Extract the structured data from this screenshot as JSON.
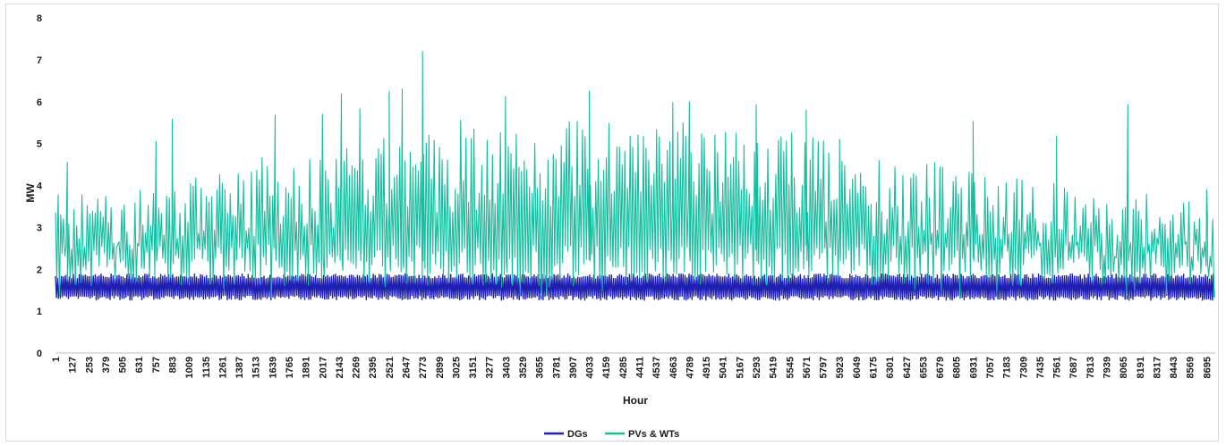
{
  "chart_data": {
    "type": "line",
    "title": "",
    "xlabel": "Hour",
    "ylabel": "MW",
    "ylim": [
      0,
      8
    ],
    "yticks": [
      0,
      1,
      2,
      3,
      4,
      5,
      6,
      7,
      8
    ],
    "xlim": [
      1,
      8760
    ],
    "xticks": [
      "1",
      "127",
      "253",
      "379",
      "505",
      "631",
      "757",
      "883",
      "1009",
      "1135",
      "1261",
      "1387",
      "1513",
      "1639",
      "1765",
      "1891",
      "2017",
      "2143",
      "2269",
      "2395",
      "2521",
      "2647",
      "2773",
      "2899",
      "3025",
      "3151",
      "3277",
      "3403",
      "3529",
      "3655",
      "3781",
      "3907",
      "4033",
      "4159",
      "4285",
      "4411",
      "4537",
      "4663",
      "4789",
      "4915",
      "5041",
      "5167",
      "5293",
      "5419",
      "5545",
      "5671",
      "5797",
      "5923",
      "6049",
      "6175",
      "6301",
      "6427",
      "6553",
      "6679",
      "6805",
      "6931",
      "7057",
      "7183",
      "7309",
      "7435",
      "7561",
      "7687",
      "7813",
      "7939",
      "8065",
      "8191",
      "8317",
      "8443",
      "8569",
      "8695"
    ],
    "grid": false,
    "legend_position": "bottom",
    "series": [
      {
        "name": "DGs",
        "color": "#1f1fb4",
        "min": 1.25,
        "max": 1.9
      },
      {
        "name": "PVs & WTs",
        "color": "#12bfa0",
        "typical_range": [
          1.5,
          6.0
        ],
        "peaks": [
          {
            "x": 90,
            "y": 4.55
          },
          {
            "x": 760,
            "y": 5.05
          },
          {
            "x": 883,
            "y": 5.58
          },
          {
            "x": 1660,
            "y": 5.68
          },
          {
            "x": 2017,
            "y": 5.7
          },
          {
            "x": 2160,
            "y": 6.18
          },
          {
            "x": 2300,
            "y": 5.83
          },
          {
            "x": 2521,
            "y": 6.25
          },
          {
            "x": 2620,
            "y": 6.3
          },
          {
            "x": 2773,
            "y": 7.2
          },
          {
            "x": 3400,
            "y": 6.12
          },
          {
            "x": 4033,
            "y": 6.25
          },
          {
            "x": 4663,
            "y": 5.98
          },
          {
            "x": 4789,
            "y": 6.0
          },
          {
            "x": 5293,
            "y": 5.93
          },
          {
            "x": 5671,
            "y": 5.8
          },
          {
            "x": 5923,
            "y": 5.1
          },
          {
            "x": 6931,
            "y": 5.53
          },
          {
            "x": 7561,
            "y": 5.18
          },
          {
            "x": 8100,
            "y": 5.93
          },
          {
            "x": 8695,
            "y": 3.9
          }
        ]
      }
    ]
  }
}
